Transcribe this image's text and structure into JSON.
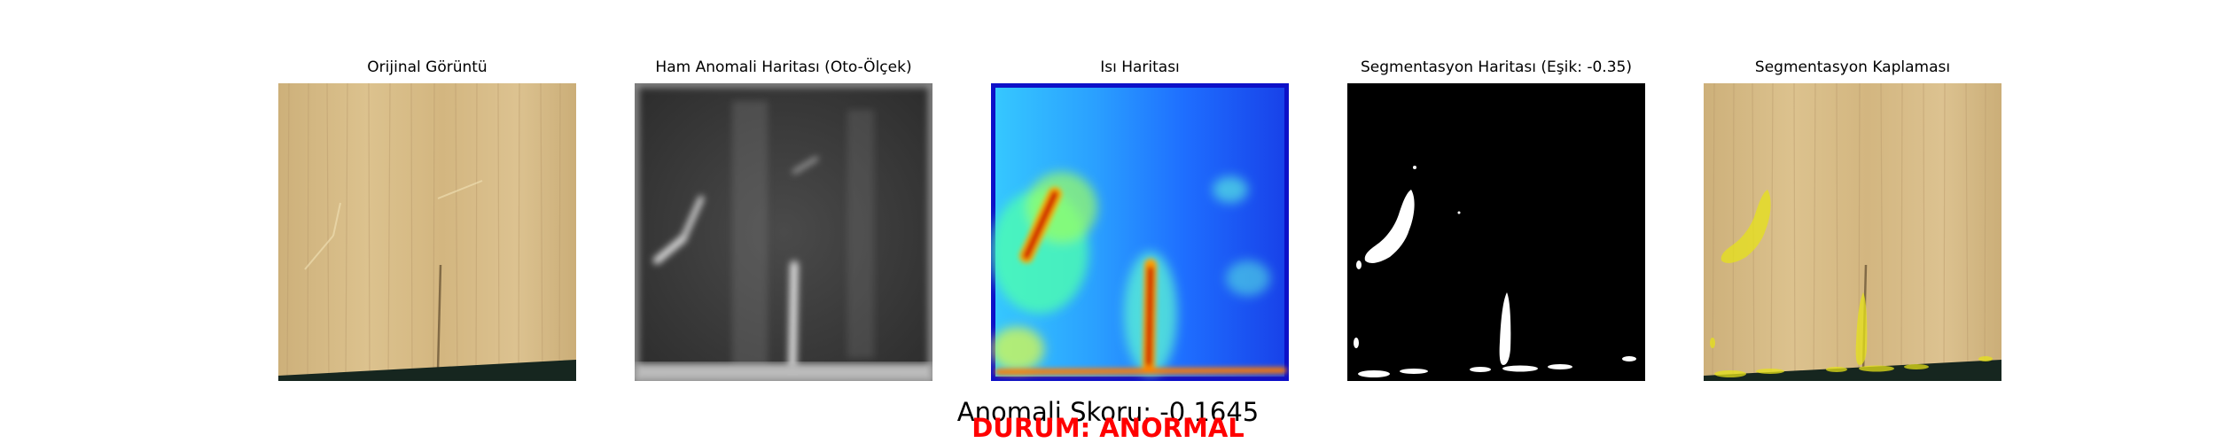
{
  "panels": [
    {
      "title": "Orijinal Görüntü",
      "icon": "wood-surface-image"
    },
    {
      "title": "Ham Anomali Haritası (Oto-Ölçek)",
      "icon": "grayscale-anomaly-map"
    },
    {
      "title": "Isı Haritası",
      "icon": "jet-heatmap"
    },
    {
      "title": "Segmentasyon Haritası (Eşik: -0.35)",
      "icon": "binary-segmentation-mask"
    },
    {
      "title": "Segmentasyon Kaplaması",
      "icon": "segmentation-overlay"
    }
  ],
  "result": {
    "score_text": "Anomali Skoru: -0.1645",
    "status_text": "DURUM: ANORMAL",
    "status_color": "#ff0000"
  },
  "colors": {
    "wood": "#d6bb85",
    "overlay": "#e6e21a",
    "heat_base": "#3a8cff"
  }
}
